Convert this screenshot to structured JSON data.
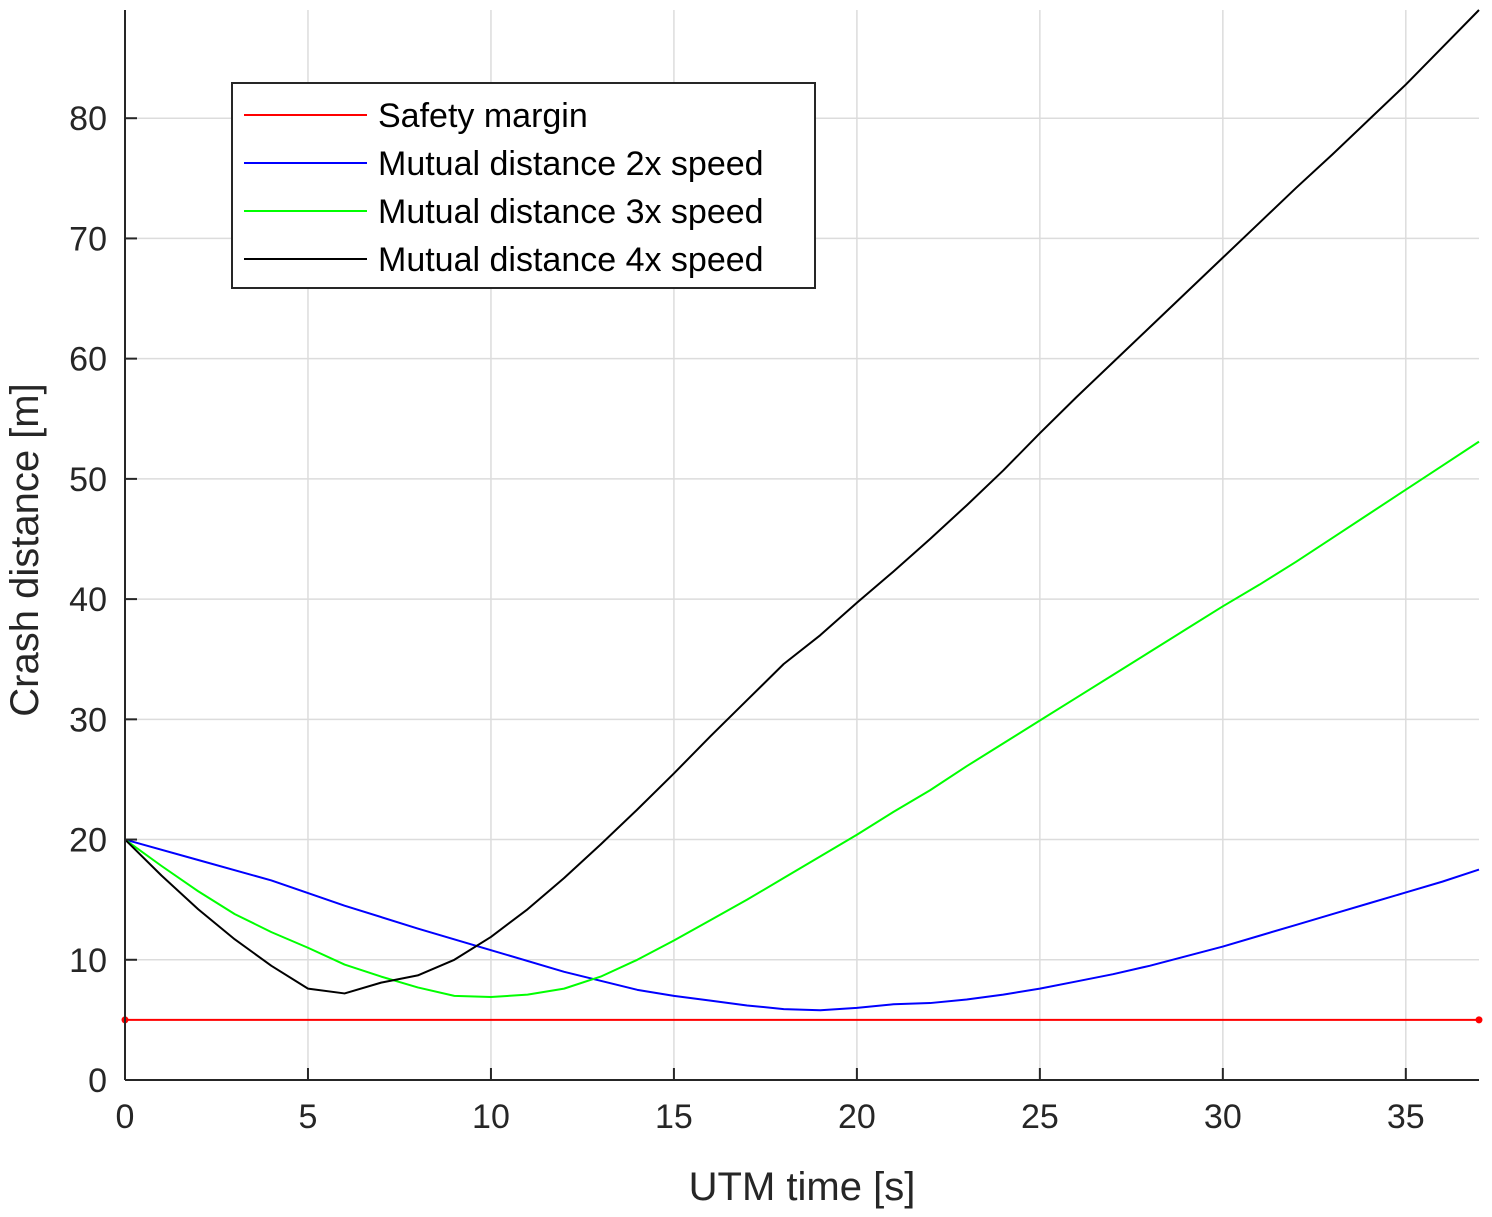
{
  "chart_data": {
    "type": "line",
    "title": "",
    "xlabel": "UTM time [s]",
    "ylabel": "Crash distance [m]",
    "xlim": [
      0,
      37
    ],
    "ylim": [
      0,
      89
    ],
    "xticks": [
      0,
      5,
      10,
      15,
      20,
      25,
      30,
      35
    ],
    "yticks": [
      0,
      10,
      20,
      30,
      40,
      50,
      60,
      70,
      80
    ],
    "grid": true,
    "legend_position": "top-left",
    "series": [
      {
        "name": "Safety margin",
        "color": "#ff0000",
        "marker_at_ends": true,
        "x": [
          0,
          37
        ],
        "y": [
          5,
          5
        ]
      },
      {
        "name": "Mutual distance 2x speed",
        "color": "#0000ff",
        "x": [
          0,
          2,
          4,
          6,
          8,
          10,
          12,
          14,
          15,
          16,
          17,
          18,
          19,
          20,
          21,
          22,
          23,
          24,
          25,
          26,
          27,
          28,
          29,
          30,
          31,
          32,
          33,
          34,
          35,
          36,
          37
        ],
        "y": [
          20,
          18.3,
          16.6,
          14.5,
          12.6,
          10.8,
          9.0,
          7.5,
          7.0,
          6.6,
          6.2,
          5.9,
          5.8,
          6.0,
          6.3,
          6.4,
          6.7,
          7.1,
          7.6,
          8.2,
          8.8,
          9.5,
          10.3,
          11.1,
          12.0,
          12.9,
          13.8,
          14.7,
          15.6,
          16.5,
          17.5
        ]
      },
      {
        "name": "Mutual distance 3x speed",
        "color": "#00ff00",
        "x": [
          0,
          1,
          2,
          3,
          4,
          5,
          6,
          7,
          8,
          9,
          10,
          11,
          12,
          13,
          14,
          15,
          16,
          17,
          18,
          19,
          20,
          21,
          22,
          23,
          24,
          25,
          26,
          27,
          28,
          29,
          30,
          31,
          32,
          33,
          34,
          35,
          36,
          37
        ],
        "y": [
          20,
          17.8,
          15.7,
          13.8,
          12.3,
          11.0,
          9.6,
          8.6,
          7.7,
          7.0,
          6.9,
          7.1,
          7.6,
          8.6,
          10.0,
          11.6,
          13.3,
          15.0,
          16.8,
          18.6,
          20.4,
          22.3,
          24.1,
          26.1,
          28.0,
          29.9,
          31.8,
          33.7,
          35.6,
          37.5,
          39.4,
          41.2,
          43.1,
          45.1,
          47.1,
          49.1,
          51.1,
          53.1
        ]
      },
      {
        "name": "Mutual distance 4x speed",
        "color": "#000000",
        "x": [
          0,
          1,
          2,
          3,
          4,
          5,
          6,
          7,
          8,
          9,
          10,
          11,
          12,
          13,
          14,
          15,
          16,
          17,
          18,
          19,
          20,
          21,
          22,
          23,
          24,
          25,
          26,
          27,
          28,
          29,
          30,
          31,
          32,
          33,
          34,
          35,
          36,
          37
        ],
        "y": [
          20,
          17.0,
          14.2,
          11.7,
          9.5,
          7.6,
          7.2,
          8.1,
          8.7,
          10.0,
          11.9,
          14.2,
          16.8,
          19.6,
          22.5,
          25.5,
          28.6,
          31.6,
          34.6,
          37.0,
          39.7,
          42.3,
          45.0,
          47.8,
          50.7,
          53.8,
          56.8,
          59.7,
          62.6,
          65.5,
          68.4,
          71.3,
          74.2,
          77.0,
          79.9,
          82.8,
          85.9,
          89.0
        ]
      }
    ]
  }
}
